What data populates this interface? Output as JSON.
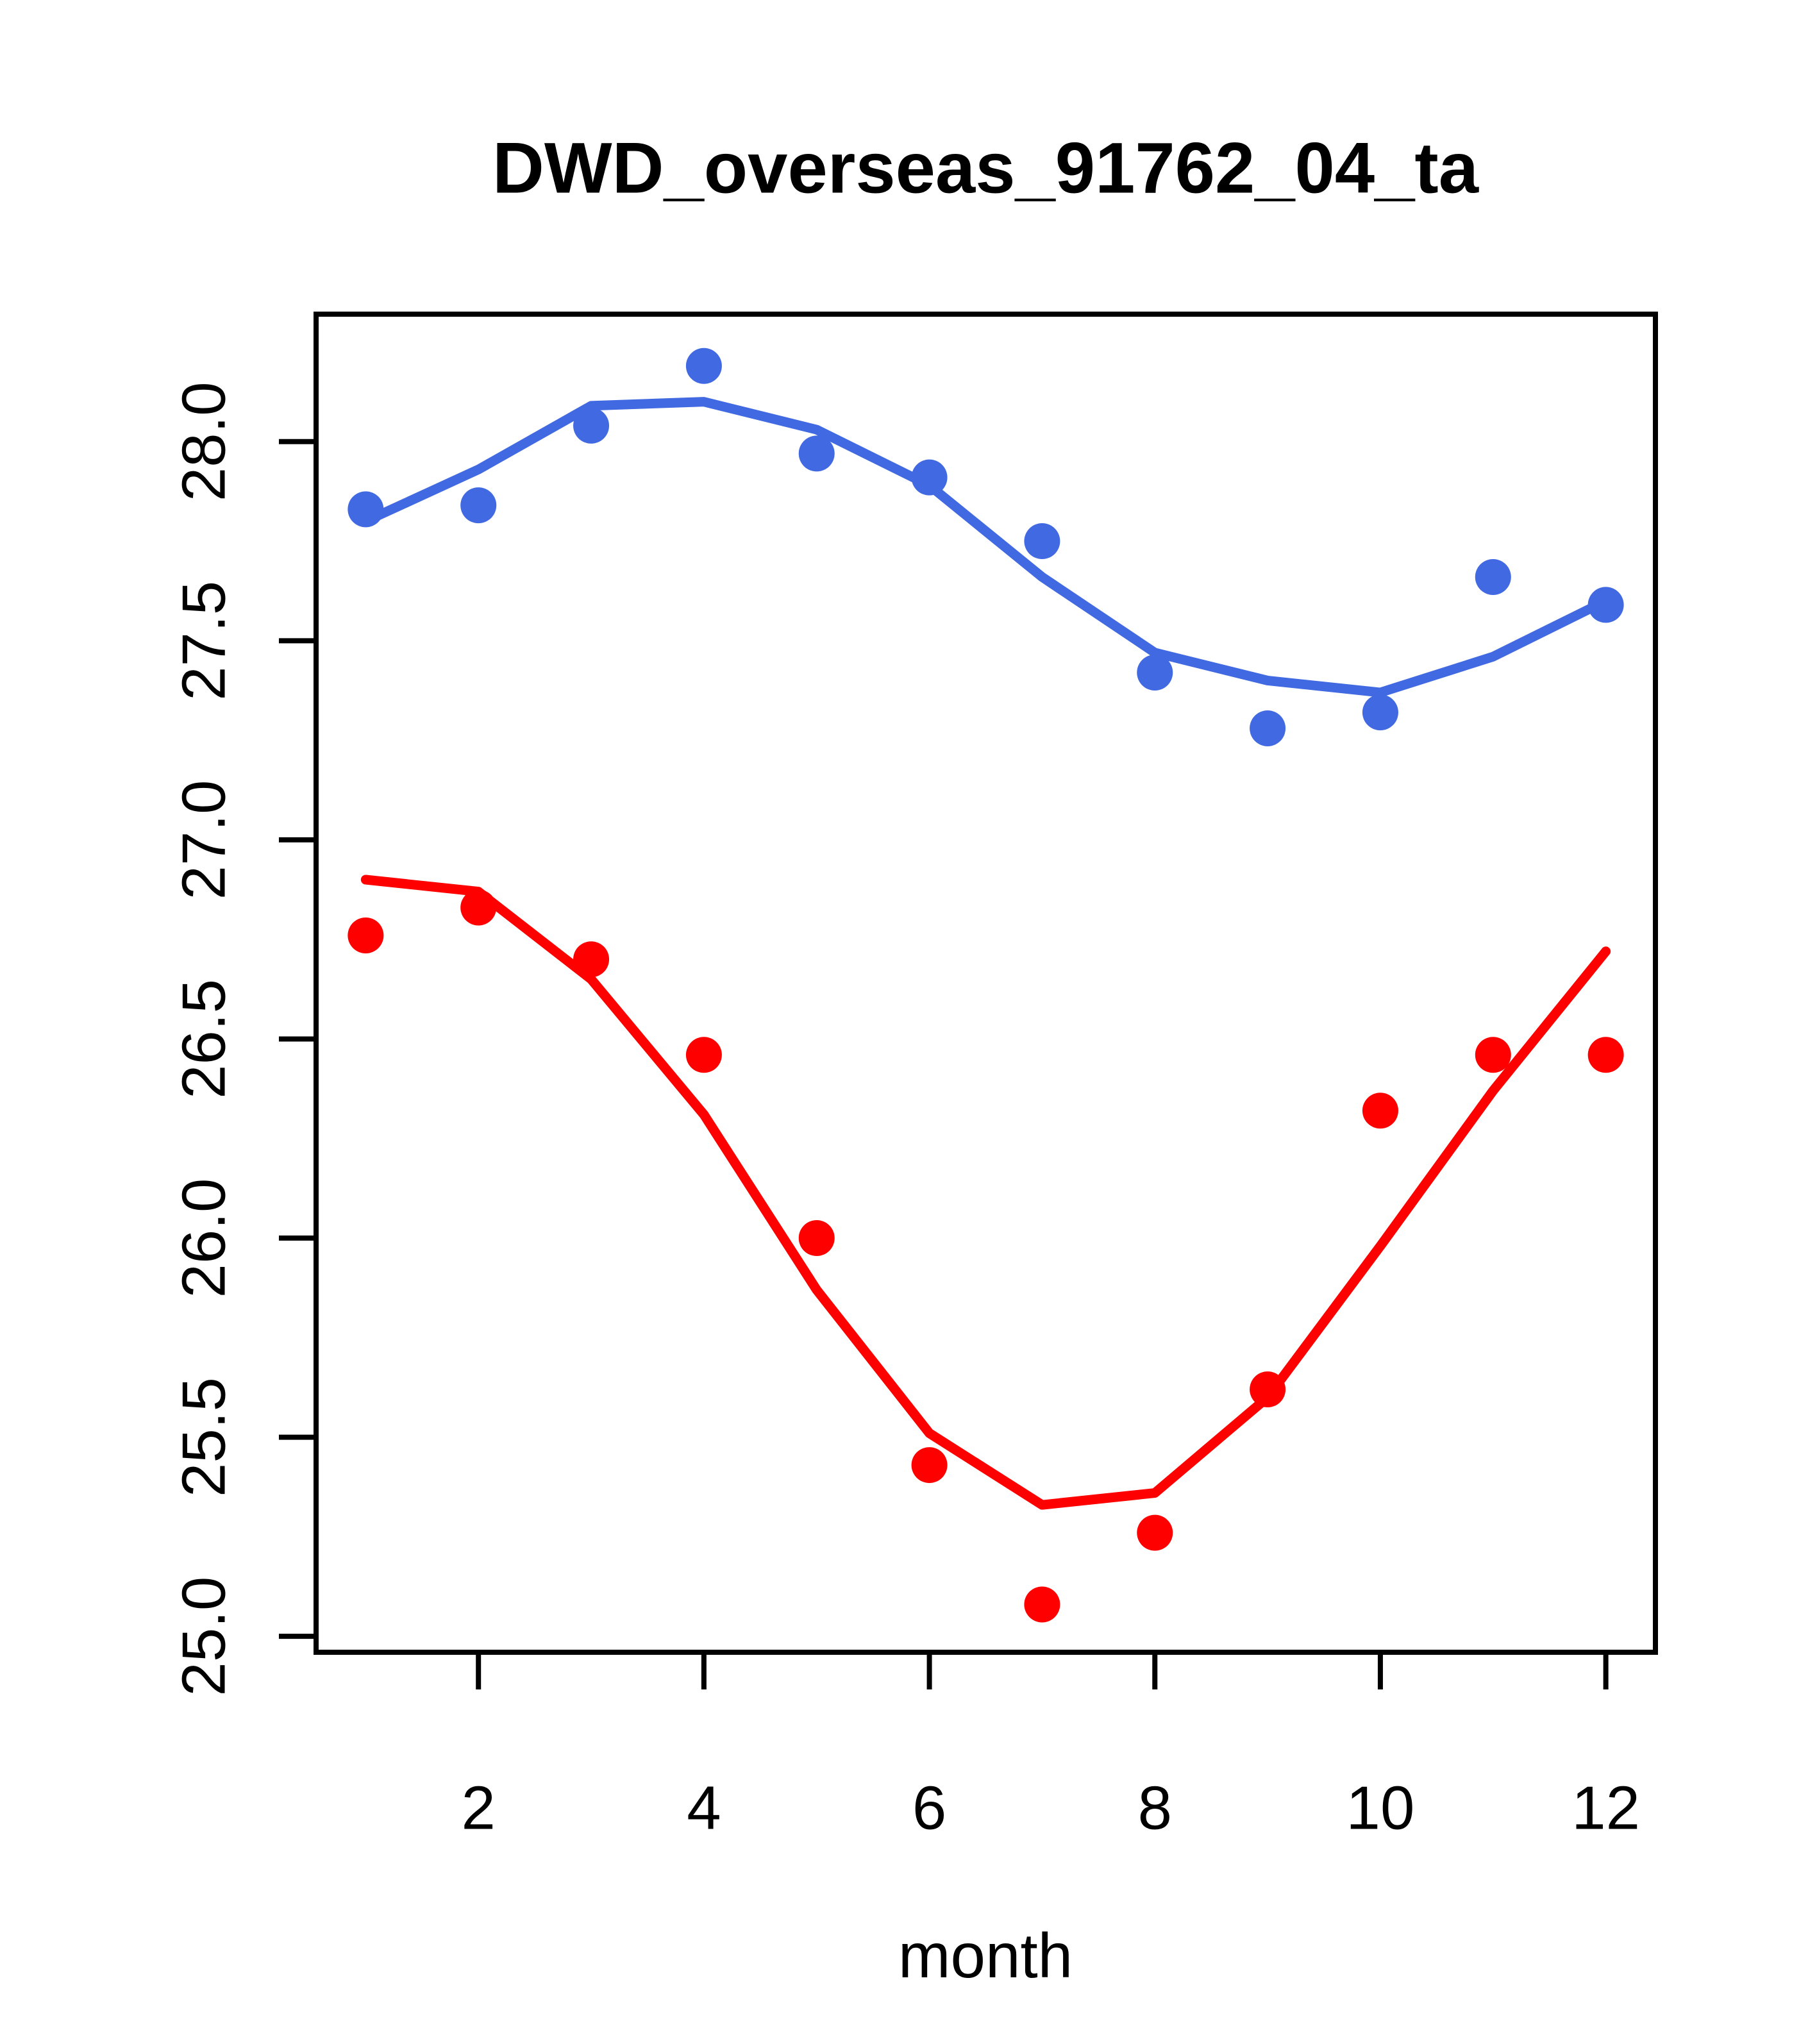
{
  "title": "DWD_overseas_91762_04_ta",
  "colors": {
    "blue": "#4169e1",
    "red": "#ff0000",
    "axis": "#000000",
    "background": "#ffffff"
  },
  "chart_data": {
    "type": "scatter",
    "title": "DWD_overseas_91762_04_ta",
    "xlabel": "month",
    "ylabel": "",
    "x": [
      1,
      2,
      3,
      4,
      5,
      6,
      7,
      8,
      9,
      10,
      11,
      12
    ],
    "x_tick_labels": [
      2,
      4,
      6,
      8,
      10,
      12
    ],
    "y_tick_labels": [
      "25.0",
      "25.5",
      "26.0",
      "26.5",
      "27.0",
      "27.5",
      "28.0"
    ],
    "y_tick_values": [
      25.0,
      25.5,
      26.0,
      26.5,
      27.0,
      27.5,
      28.0
    ],
    "xlim": [
      0.56,
      12.44
    ],
    "ylim": [
      24.96,
      28.32
    ],
    "grid": false,
    "legend": "none",
    "series": [
      {
        "name": "blue-points",
        "render": "points",
        "color": "#4169e1",
        "values": [
          27.83,
          27.84,
          28.04,
          28.19,
          27.97,
          27.91,
          27.75,
          27.42,
          27.28,
          27.32,
          27.66,
          27.59
        ]
      },
      {
        "name": "blue-lowess-line",
        "render": "line",
        "color": "#4169e1",
        "values": [
          27.8,
          27.93,
          28.09,
          28.1,
          28.03,
          27.89,
          27.66,
          27.47,
          27.4,
          27.37,
          27.46,
          27.6
        ]
      },
      {
        "name": "red-points",
        "render": "points",
        "color": "#ff0000",
        "values": [
          26.76,
          26.83,
          26.7,
          26.46,
          26.0,
          25.43,
          25.08,
          25.26,
          25.62,
          26.32,
          26.46,
          26.46
        ]
      },
      {
        "name": "red-lowess-line",
        "render": "line",
        "color": "#ff0000",
        "values": [
          26.9,
          26.87,
          26.65,
          26.31,
          25.87,
          25.51,
          25.33,
          25.36,
          25.6,
          25.98,
          26.37,
          26.72
        ]
      }
    ]
  }
}
